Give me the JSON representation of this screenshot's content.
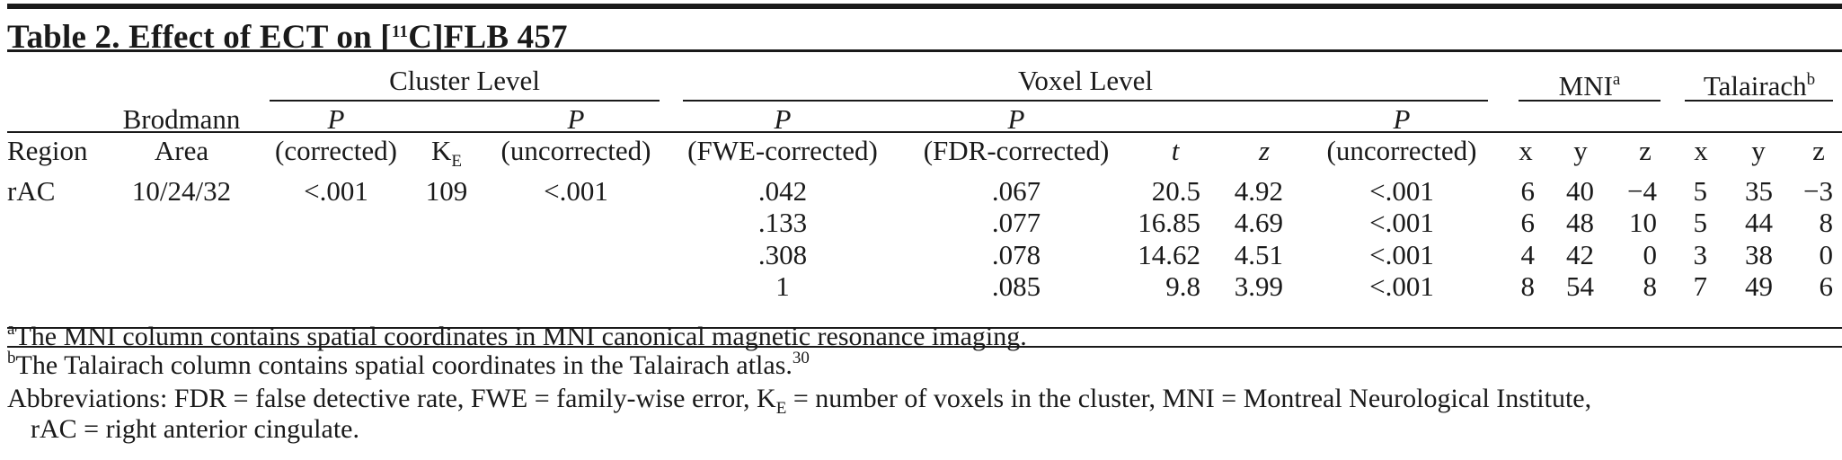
{
  "table": {
    "title_prefix": "Table 2. Effect of ECT on [",
    "title_sup": "11",
    "title_suffix": "C]FLB 457",
    "group_headers": {
      "cluster": "Cluster Level",
      "voxel": "Voxel Level",
      "mni": "MNI",
      "mni_note": "a",
      "talairach": "Talairach",
      "talairach_note": "b"
    },
    "col_headers": {
      "region": "Region",
      "brodmann_1": "Brodmann",
      "brodmann_2": "Area",
      "p": "P",
      "cl_corrected": "(corrected)",
      "ke_main": "K",
      "ke_sub": "E",
      "cl_uncorrected": "(uncorrected)",
      "fwe": "(FWE-corrected)",
      "fdr": "(FDR-corrected)",
      "t": "t",
      "z": "z",
      "vx_uncorrected": "(uncorrected)",
      "x": "x",
      "y": "y",
      "zc": "z"
    },
    "rows": [
      {
        "region": "rAC",
        "area": "10/24/32",
        "cl_p_corr": "<.001",
        "ke": "109",
        "cl_p_unc": "<.001",
        "fwe": ".042",
        "fdr": ".067",
        "t": "20.5",
        "z": "4.92",
        "vx_p_unc": "<.001",
        "mni_x": "6",
        "mni_y": "40",
        "mni_z": "−4",
        "tal_x": "5",
        "tal_y": "35",
        "tal_z": "−3"
      },
      {
        "region": "",
        "area": "",
        "cl_p_corr": "",
        "ke": "",
        "cl_p_unc": "",
        "fwe": ".133",
        "fdr": ".077",
        "t": "16.85",
        "z": "4.69",
        "vx_p_unc": "<.001",
        "mni_x": "6",
        "mni_y": "48",
        "mni_z": "10",
        "tal_x": "5",
        "tal_y": "44",
        "tal_z": "8"
      },
      {
        "region": "",
        "area": "",
        "cl_p_corr": "",
        "ke": "",
        "cl_p_unc": "",
        "fwe": ".308",
        "fdr": ".078",
        "t": "14.62",
        "z": "4.51",
        "vx_p_unc": "<.001",
        "mni_x": "4",
        "mni_y": "42",
        "mni_z": "0",
        "tal_x": "3",
        "tal_y": "38",
        "tal_z": "0"
      },
      {
        "region": "",
        "area": "",
        "cl_p_corr": "",
        "ke": "",
        "cl_p_unc": "",
        "fwe": "1",
        "fdr": ".085",
        "t": "9.8",
        "z": "3.99",
        "vx_p_unc": "<.001",
        "mni_x": "8",
        "mni_y": "54",
        "mni_z": "8",
        "tal_x": "7",
        "tal_y": "49",
        "tal_z": "6"
      }
    ],
    "footnotes": {
      "a_mark": "a",
      "a_text": "The MNI column contains spatial coordinates in MNI canonical magnetic resonance imaging.",
      "b_mark": "b",
      "b_text": "The Talairach column contains spatial coordinates in the Talairach atlas.",
      "b_ref": "30",
      "abbrev_1a": "Abbreviations: FDR = false detective rate, FWE = family-wise error, K",
      "abbrev_1sub": "E",
      "abbrev_1b": " = number of voxels in the cluster, MNI = Montreal Neurological Institute,",
      "abbrev_2": "rAC = right anterior cingulate."
    }
  }
}
